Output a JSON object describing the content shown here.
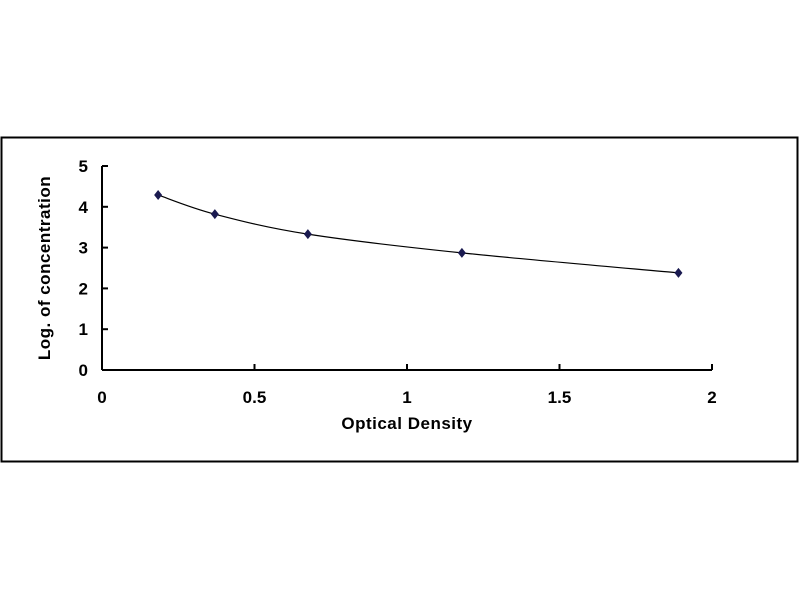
{
  "chart_data": {
    "type": "scatter",
    "title": "",
    "xlabel": "Optical Density",
    "ylabel": "Log. of concentration",
    "xlim": [
      0,
      2
    ],
    "ylim": [
      0,
      5
    ],
    "xticks": [
      "0",
      "0.5",
      "1",
      "1.5",
      "2"
    ],
    "yticks": [
      "0",
      "1",
      "2",
      "3",
      "4",
      "5"
    ],
    "grid": false,
    "legend": "none",
    "smoothed_line": true,
    "marker": "diamond",
    "series_color": "#1a1a50",
    "series": [
      {
        "x": [
          0.184,
          0.37,
          0.675,
          1.18,
          1.89
        ],
        "y": [
          4.29,
          3.82,
          3.33,
          2.87,
          2.38
        ]
      }
    ]
  }
}
